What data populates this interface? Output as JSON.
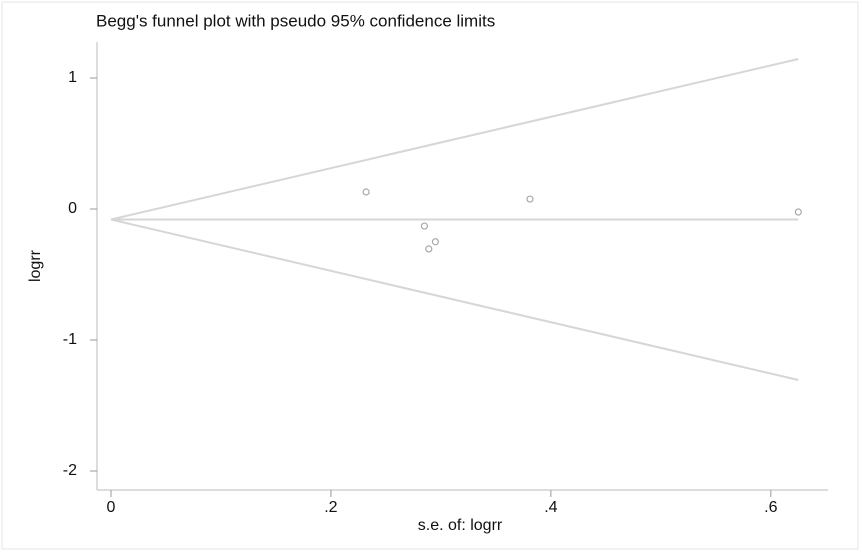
{
  "chart_data": {
    "type": "scatter",
    "title": "Begg's funnel plot with pseudo 95% confidence limits",
    "x_label": "s.e. of: logrr",
    "y_label": "logrr",
    "x": [
      0.232,
      0.285,
      0.289,
      0.295,
      0.381,
      0.625
    ],
    "values": [
      0.13,
      -0.13,
      -0.305,
      -0.25,
      0.076,
      -0.023
    ],
    "color": "#a8a8a8",
    "lines": [
      {
        "x": [
          0,
          0.625
        ],
        "values": [
          -0.08,
          1.145
        ],
        "color": "#d6d6d6"
      },
      {
        "x": [
          0,
          0.625
        ],
        "values": [
          -0.08,
          -1.305
        ],
        "color": "#d6d6d6"
      },
      {
        "x": [
          0,
          0.625
        ],
        "values": [
          -0.08,
          -0.08
        ],
        "color": "#d6d6d6"
      }
    ],
    "xlim": [
      -0.0127,
      0.652
    ],
    "ylim": [
      -2.145,
      1.275
    ],
    "xticks": [
      0,
      {
        "value": 0.2,
        "label": ".2"
      },
      {
        "value": 0.4,
        "label": ".4"
      },
      {
        "value": 0.6,
        "label": ".6"
      }
    ],
    "yticks": [
      1,
      0,
      -1,
      -2
    ],
    "grid": false
  }
}
